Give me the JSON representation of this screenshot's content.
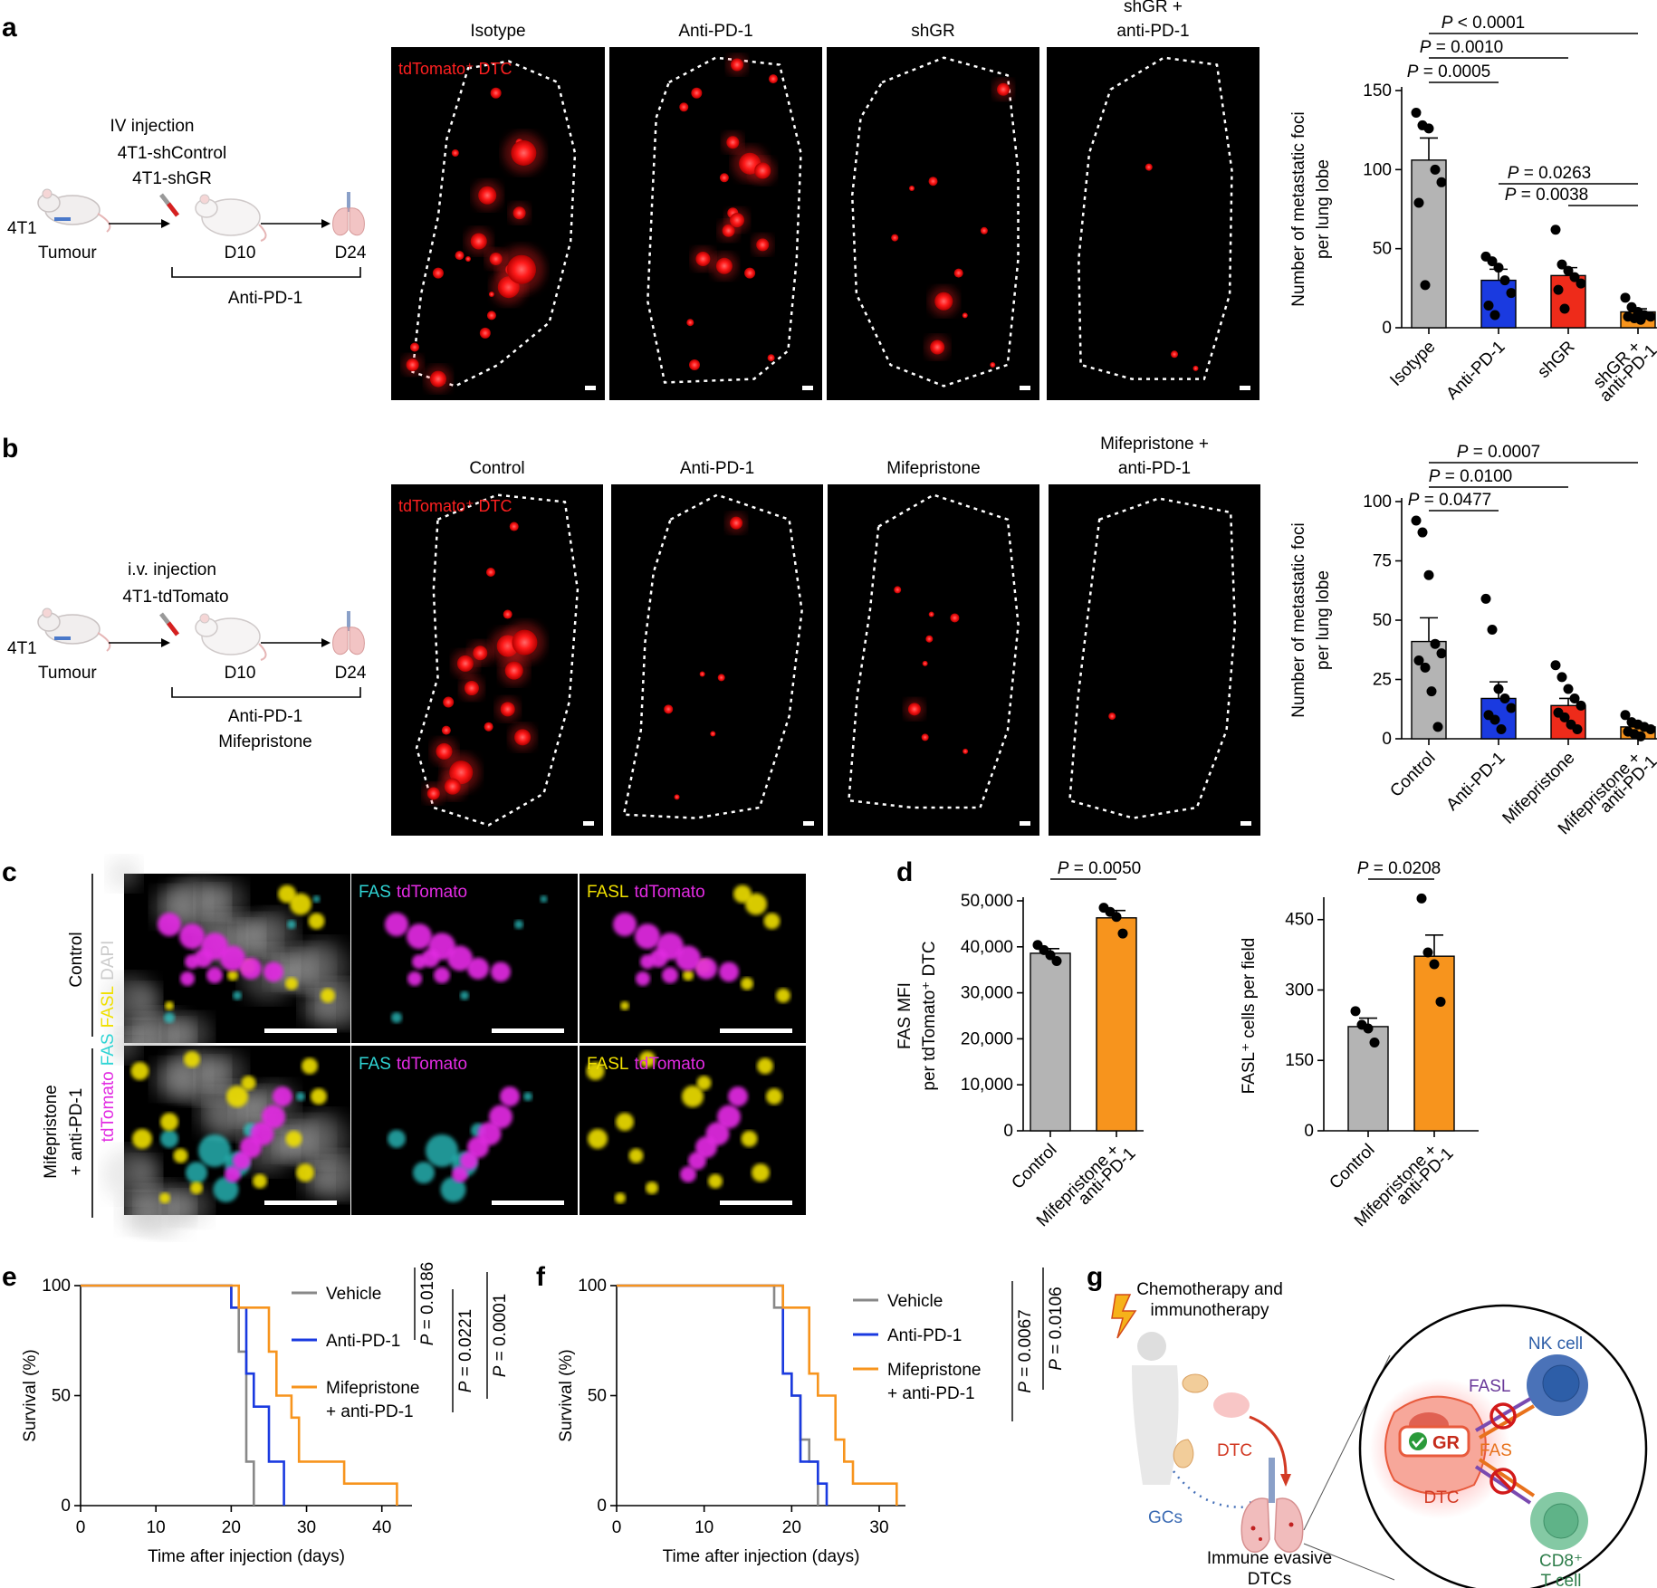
{
  "panel_labels": [
    "a",
    "b",
    "c",
    "d",
    "e",
    "f",
    "g"
  ],
  "schematic_a": {
    "tumour_label": "4T1",
    "tumour_sub": "Tumour",
    "injection": "IV injection",
    "lines": [
      "4T1-shControl",
      "4T1-shGR"
    ],
    "day1": "D10",
    "day2": "D24",
    "treatment": [
      "Anti-PD-1"
    ]
  },
  "schematic_b": {
    "tumour_label": "4T1",
    "tumour_sub": "Tumour",
    "injection": "i.v. injection",
    "lines": [
      "4T1-tdTomato"
    ],
    "day1": "D10",
    "day2": "D24",
    "treatment": [
      "Anti-PD-1",
      "Mifepristone"
    ]
  },
  "images_a": {
    "channel_label": "tdTomato⁺ DTC",
    "titles": [
      [
        "Isotype"
      ],
      [
        "Anti-PD-1"
      ],
      [
        "shGR"
      ],
      [
        "shGR +",
        "anti-PD-1"
      ]
    ]
  },
  "images_b": {
    "channel_label": "tdTomato⁺ DTC",
    "titles": [
      [
        "Control"
      ],
      [
        "Anti-PD-1"
      ],
      [
        "Mifepristone"
      ],
      [
        "Mifepristone +",
        "anti-PD-1"
      ]
    ]
  },
  "images_c": {
    "row_labels": [
      [
        "Control"
      ],
      [
        "Mifepristone",
        "+ anti-PD-1"
      ]
    ],
    "side_label": [
      "tdTomato",
      "FAS",
      "FASL",
      "DAPI"
    ],
    "col_labels": [
      [
        "FAS",
        "tdTomato"
      ],
      [
        "FASL",
        "tdTomato"
      ]
    ],
    "colors": {
      "fas": "#2fd4d4",
      "tdtomato": "#e22be2",
      "fasl": "#f0e000",
      "dapi": "#bbbbbb"
    }
  },
  "chart_data": [
    {
      "id": "a-bar",
      "type": "bar",
      "categories": [
        "Isotype",
        "Anti-PD-1",
        "shGR",
        "shGR + anti-PD-1"
      ],
      "colors": [
        "#b4b4b4",
        "#1a3ae0",
        "#ee2b1a",
        "#f7941d"
      ],
      "values": [
        106,
        30,
        33,
        10
      ],
      "sem": [
        14,
        7,
        5,
        2
      ],
      "points": [
        [
          136,
          128,
          126,
          100,
          92,
          79,
          27
        ],
        [
          45,
          42,
          38,
          30,
          22,
          14,
          8
        ],
        [
          62,
          40,
          36,
          32,
          28,
          24,
          12
        ],
        [
          19,
          13,
          10,
          8,
          7,
          7,
          6,
          5
        ]
      ],
      "ylabel": [
        "Number of metastatic foci",
        "per lung lobe"
      ],
      "yticks": [
        0,
        50,
        100,
        150
      ],
      "ylim": [
        0,
        150
      ],
      "pvalues": [
        {
          "text": "P = 0.0005",
          "from": 0,
          "to": 1
        },
        {
          "text": "P = 0.0010",
          "from": 0,
          "to": 2
        },
        {
          "text": "P < 0.0001",
          "from": 0,
          "to": 3
        },
        {
          "text": "P = 0.0263",
          "from": 1,
          "to": 3
        },
        {
          "text": "P = 0.0038",
          "from": 2,
          "to": 3
        }
      ]
    },
    {
      "id": "b-bar",
      "type": "bar",
      "categories": [
        "Control",
        "Anti-PD-1",
        "Mifepristone",
        "Mifepristone + anti-PD-1"
      ],
      "colors": [
        "#b4b4b4",
        "#1a3ae0",
        "#ee2b1a",
        "#f7941d"
      ],
      "values": [
        41,
        17,
        14,
        5
      ],
      "sem": [
        10,
        7,
        3,
        1
      ],
      "points": [
        [
          92,
          87,
          69,
          40,
          36,
          33,
          30,
          20,
          5
        ],
        [
          59,
          46,
          21,
          17,
          13,
          10,
          8,
          4
        ],
        [
          31,
          26,
          21,
          17,
          14,
          11,
          9,
          6,
          4
        ],
        [
          10,
          7,
          6,
          5,
          4,
          3,
          2,
          1
        ]
      ],
      "ylabel": [
        "Number of metastatic foci",
        "per lung lobe"
      ],
      "yticks": [
        0,
        25,
        50,
        75,
        100
      ],
      "ylim": [
        0,
        100
      ],
      "pvalues": [
        {
          "text": "P = 0.0477",
          "from": 0,
          "to": 1
        },
        {
          "text": "P = 0.0100",
          "from": 0,
          "to": 2
        },
        {
          "text": "P = 0.0007",
          "from": 0,
          "to": 3
        }
      ]
    },
    {
      "id": "d1-bar",
      "type": "bar",
      "categories": [
        "Control",
        "Mifepristone + anti-PD-1"
      ],
      "colors": [
        "#b4b4b4",
        "#f7941d"
      ],
      "values": [
        38600,
        46300
      ],
      "sem": [
        1000,
        1600
      ],
      "points": [
        [
          40400,
          39300,
          38200,
          36900
        ],
        [
          48500,
          47600,
          46500,
          42900
        ]
      ],
      "ylabel": [
        "FAS MFI",
        "per tdTomato⁺ DTC"
      ],
      "yticks": [
        0,
        10000,
        20000,
        30000,
        40000,
        50000
      ],
      "ytick_labels": [
        "0",
        "10,000",
        "20,000",
        "30,000",
        "40,000",
        "50,000"
      ],
      "ylim": [
        0,
        50000
      ],
      "pvalues": [
        {
          "text": "P = 0.0050",
          "from": 0,
          "to": 1
        }
      ]
    },
    {
      "id": "d2-bar",
      "type": "bar",
      "categories": [
        "Control",
        "Mifepristone + anti-PD-1"
      ],
      "colors": [
        "#b4b4b4",
        "#f7941d"
      ],
      "values": [
        222,
        372
      ],
      "sem": [
        18,
        45
      ],
      "points": [
        [
          255,
          226,
          218,
          188
        ],
        [
          495,
          380,
          355,
          275
        ]
      ],
      "ylabel": [
        "FASL⁺ cells per field"
      ],
      "yticks": [
        0,
        150,
        300,
        450
      ],
      "ylim": [
        0,
        490
      ],
      "pvalues": [
        {
          "text": "P = 0.0208",
          "from": 0,
          "to": 1
        }
      ]
    },
    {
      "id": "e-km",
      "type": "line",
      "xlabel": "Time after injection (days)",
      "ylabel": "Survival (%)",
      "xticks": [
        0,
        10,
        20,
        30,
        40
      ],
      "yticks": [
        0,
        50,
        100
      ],
      "xlim": [
        0,
        44
      ],
      "ylim": [
        0,
        100
      ],
      "series": [
        {
          "name": "Vehicle",
          "color": "#888888",
          "steps": [
            [
              0,
              100
            ],
            [
              20,
              100
            ],
            [
              20,
              90
            ],
            [
              21,
              90
            ],
            [
              21,
              70
            ],
            [
              22,
              70
            ],
            [
              22,
              20
            ],
            [
              23,
              20
            ],
            [
              23,
              0
            ]
          ]
        },
        {
          "name": "Anti-PD-1",
          "color": "#1a3ae0",
          "steps": [
            [
              0,
              100
            ],
            [
              20,
              100
            ],
            [
              20,
              90
            ],
            [
              22,
              90
            ],
            [
              22,
              60
            ],
            [
              23,
              60
            ],
            [
              23,
              45
            ],
            [
              25,
              45
            ],
            [
              25,
              20
            ],
            [
              27,
              20
            ],
            [
              27,
              0
            ]
          ]
        },
        {
          "name": "Mifepristone + anti-PD-1",
          "color": "#f7941d",
          "steps": [
            [
              0,
              100
            ],
            [
              21,
              100
            ],
            [
              21,
              90
            ],
            [
              25,
              90
            ],
            [
              25,
              70
            ],
            [
              26,
              70
            ],
            [
              26,
              50
            ],
            [
              28,
              50
            ],
            [
              28,
              40
            ],
            [
              29,
              40
            ],
            [
              29,
              20
            ],
            [
              35,
              20
            ],
            [
              35,
              10
            ],
            [
              42,
              10
            ],
            [
              42,
              0
            ]
          ]
        }
      ],
      "pvalues": [
        "P = 0.0186",
        "P = 0.0221",
        "P = 0.0001"
      ]
    },
    {
      "id": "f-km",
      "type": "line",
      "xlabel": "Time after injection (days)",
      "ylabel": "Survival (%)",
      "xticks": [
        0,
        10,
        20,
        30
      ],
      "yticks": [
        0,
        50,
        100
      ],
      "xlim": [
        0,
        33
      ],
      "ylim": [
        0,
        100
      ],
      "series": [
        {
          "name": "Vehicle",
          "color": "#888888",
          "steps": [
            [
              0,
              100
            ],
            [
              18,
              100
            ],
            [
              18,
              90
            ],
            [
              19,
              90
            ],
            [
              19,
              60
            ],
            [
              20,
              60
            ],
            [
              20,
              50
            ],
            [
              21,
              50
            ],
            [
              21,
              30
            ],
            [
              22,
              30
            ],
            [
              22,
              20
            ],
            [
              23,
              20
            ],
            [
              23,
              0
            ]
          ]
        },
        {
          "name": "Anti-PD-1",
          "color": "#1a3ae0",
          "steps": [
            [
              0,
              100
            ],
            [
              19,
              100
            ],
            [
              19,
              60
            ],
            [
              20,
              60
            ],
            [
              20,
              50
            ],
            [
              21,
              50
            ],
            [
              21,
              20
            ],
            [
              23,
              20
            ],
            [
              23,
              10
            ],
            [
              24,
              10
            ],
            [
              24,
              0
            ]
          ]
        },
        {
          "name": "Mifepristone + anti-PD-1",
          "color": "#f7941d",
          "steps": [
            [
              0,
              100
            ],
            [
              19,
              100
            ],
            [
              19,
              90
            ],
            [
              22,
              90
            ],
            [
              22,
              60
            ],
            [
              23,
              60
            ],
            [
              23,
              50
            ],
            [
              25,
              50
            ],
            [
              25,
              30
            ],
            [
              26,
              30
            ],
            [
              26,
              20
            ],
            [
              27,
              20
            ],
            [
              27,
              10
            ],
            [
              32,
              10
            ],
            [
              32,
              0
            ]
          ]
        }
      ],
      "pvalues": [
        "P = 0.0067",
        "P = 0.0106"
      ]
    }
  ],
  "schematic_g": {
    "therapy": [
      "Chemotherapy and",
      "immunotherapy"
    ],
    "dtc": "DTC",
    "gcs": "GCs",
    "evasive": [
      "Immune evasive",
      "DTCs"
    ],
    "nk": "NK cell",
    "cd8": [
      "CD8⁺",
      "T cell"
    ],
    "fasl": "FASL",
    "fas": "FAS",
    "gr": "GR",
    "dtc_cell": "DTC",
    "colors": {
      "nk": "#2d5ea8",
      "cd8": "#5fb388",
      "fasl": "#6a3a9a",
      "fas": "#e8721c"
    }
  }
}
